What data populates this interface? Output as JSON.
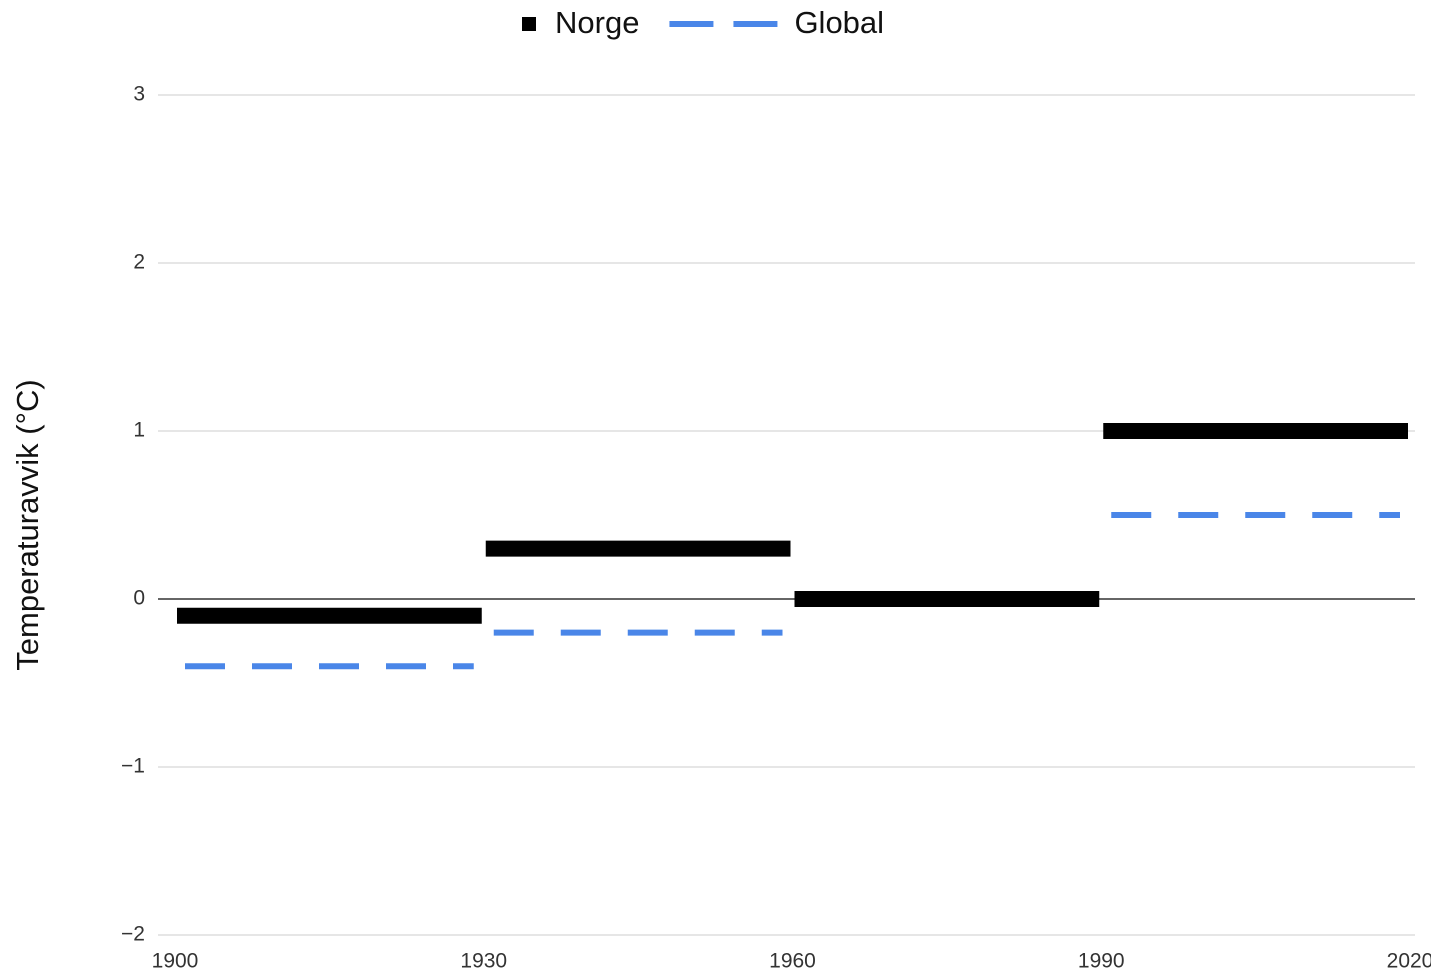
{
  "chart_data": {
    "type": "step",
    "y_label": "Temperaturavvik (°C)",
    "x_start": [
      1900,
      1930,
      1960,
      1990
    ],
    "x_end": [
      1930,
      1960,
      1990,
      2020
    ],
    "series": [
      {
        "name": "Norge",
        "color": "#000000",
        "style": "solid",
        "values": [
          -0.1,
          0.3,
          0,
          1.0
        ]
      },
      {
        "name": "Global",
        "color": "#4a86e8",
        "style": "dashed",
        "values": [
          -0.4,
          -0.2,
          0,
          0.5
        ]
      }
    ],
    "xlim": [
      1900,
      2020
    ],
    "xticks": [
      1900,
      1930,
      1960,
      1990,
      2020
    ],
    "ylim": [
      -2,
      3
    ],
    "yticks": [
      {
        "value": -2,
        "label": "−2"
      },
      {
        "value": -1,
        "label": "−1"
      },
      0,
      1,
      2,
      3
    ],
    "grid": true,
    "legend": "top"
  }
}
